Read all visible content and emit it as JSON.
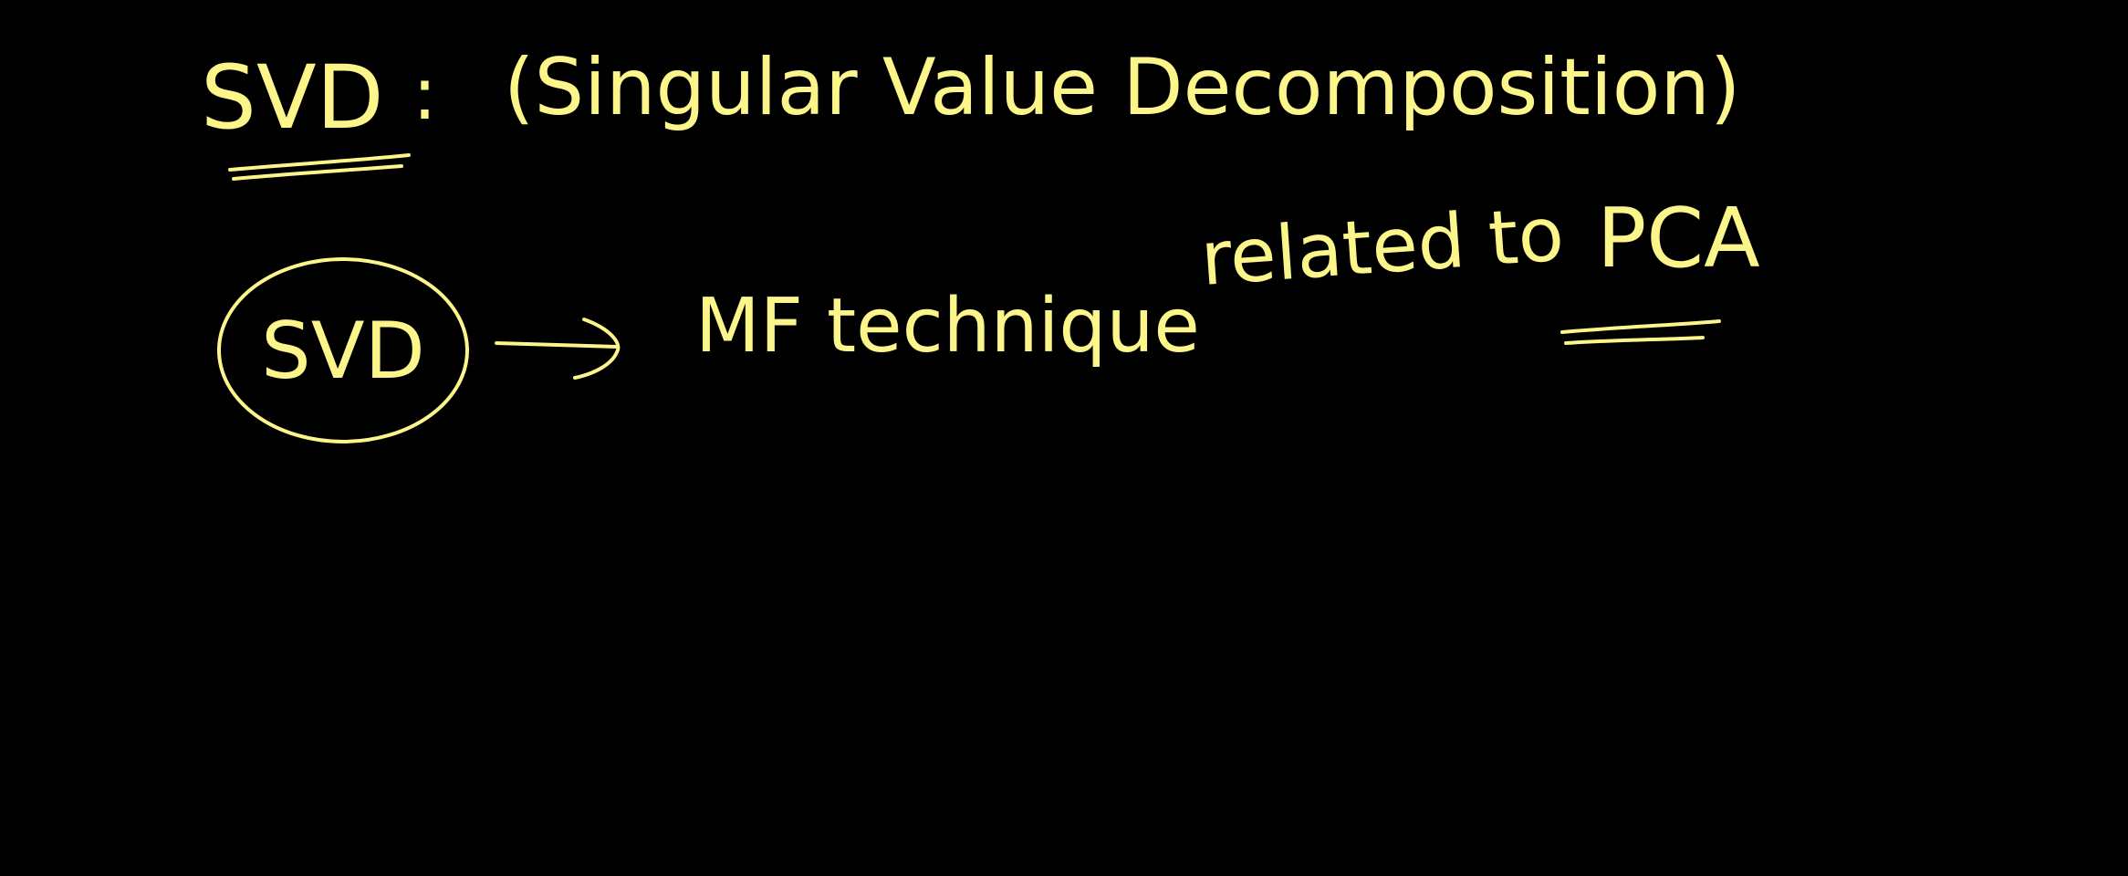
{
  "board": {
    "ink_color": "#fbf58a",
    "background_color": "#000000",
    "heading": {
      "acronym": "SVD",
      "colon": ":",
      "expansion": "(Singular Value Decomposition)"
    },
    "note": {
      "circled_label": "SVD",
      "arrow_icon": "right-arrow-icon",
      "description": "MF technique",
      "relation_prefix": "related to",
      "relation_target": "PCA"
    }
  }
}
